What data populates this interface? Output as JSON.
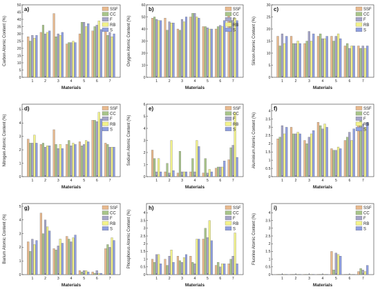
{
  "colors": {
    "SSF": "#e8b98e",
    "CC": "#a8c48a",
    "F": "#a5a5c8",
    "RB": "#f2f28a",
    "S": "#8f9fe0"
  },
  "chart_data": [
    {
      "type": "bar",
      "panel": "a)",
      "xlabel": "Materials",
      "ylabel": "Carbon Atomic Content (%)",
      "categories": [
        "1",
        "2",
        "3",
        "4",
        "5",
        "6",
        "7"
      ],
      "ylim": [
        0,
        50
      ],
      "yticks": [
        0,
        5,
        10,
        15,
        20,
        25,
        30,
        35,
        40,
        45,
        50
      ],
      "legend": [
        "SSF",
        "CC",
        "F",
        "RB",
        "S"
      ],
      "series": [
        {
          "name": "SSF",
          "values": [
            28,
            31,
            44,
            23,
            30,
            32,
            32
          ]
        },
        {
          "name": "CC",
          "values": [
            25,
            36,
            28,
            24,
            38,
            35,
            29
          ]
        },
        {
          "name": "F",
          "values": [
            29,
            30,
            30,
            24,
            38,
            36,
            31
          ]
        },
        {
          "name": "RB",
          "values": [
            27,
            31,
            29,
            25,
            35,
            39,
            28
          ]
        },
        {
          "name": "S",
          "values": [
            29,
            32,
            31,
            24,
            37,
            33,
            30
          ]
        }
      ]
    },
    {
      "type": "bar",
      "panel": "b)",
      "xlabel": "Materials",
      "ylabel": "Oxygen Atomic Content (%)",
      "categories": [
        "1",
        "2",
        "3",
        "4",
        "5",
        "6",
        "7"
      ],
      "ylim": [
        0,
        60
      ],
      "yticks": [
        0,
        10,
        20,
        30,
        40,
        50,
        60
      ],
      "legend": [
        "SSF",
        "CC",
        "F",
        "RB",
        "S"
      ],
      "series": [
        {
          "name": "SSF",
          "values": [
            49,
            49,
            40,
            50,
            42,
            40,
            51
          ]
        },
        {
          "name": "CC",
          "values": [
            50,
            39,
            39,
            53,
            42,
            42,
            47
          ]
        },
        {
          "name": "F",
          "values": [
            48,
            46,
            48,
            53,
            41,
            43,
            47
          ]
        },
        {
          "name": "RB",
          "values": [
            47,
            45,
            46,
            50,
            40,
            42,
            49
          ]
        },
        {
          "name": "S",
          "values": [
            47,
            45,
            50,
            49,
            40,
            47,
            47
          ]
        }
      ]
    },
    {
      "type": "bar",
      "panel": "c)",
      "xlabel": "Materials",
      "ylabel": "Silicon Atomic Content (%)",
      "categories": [
        "1",
        "2",
        "3",
        "4",
        "5",
        "6",
        "7"
      ],
      "ylim": [
        0,
        30
      ],
      "yticks": [
        0,
        5,
        10,
        15,
        20,
        25,
        30
      ],
      "legend": [
        "SSF",
        "CC",
        "F",
        "RB",
        "S"
      ],
      "series": [
        {
          "name": "SSF",
          "values": [
            17,
            17,
            14,
            17,
            17,
            13,
            13
          ]
        },
        {
          "name": "CC",
          "values": [
            13,
            14,
            15,
            18,
            15,
            14,
            12
          ]
        },
        {
          "name": "F",
          "values": [
            18,
            14,
            19,
            16,
            17,
            12,
            13
          ]
        },
        {
          "name": "RB",
          "values": [
            14,
            15,
            15,
            16,
            18,
            13,
            12
          ]
        },
        {
          "name": "S",
          "values": [
            17,
            14,
            18,
            17,
            16,
            13,
            13
          ]
        }
      ]
    },
    {
      "type": "bar",
      "panel": "d)",
      "xlabel": "Materials",
      "ylabel": "Nitrogen Atomic Content (%)",
      "categories": [
        "1",
        "2",
        "3",
        "4",
        "5",
        "6",
        "7"
      ],
      "ylim": [
        0,
        5.4
      ],
      "yticks": [
        0,
        1,
        2,
        3,
        4,
        5
      ],
      "legend": [
        "SSF",
        "CC",
        "F",
        "RB",
        "S"
      ],
      "series": [
        {
          "name": "SSF",
          "values": [
            2.8,
            2.4,
            3.5,
            2.4,
            2.6,
            4.2,
            2.5
          ]
        },
        {
          "name": "CC",
          "values": [
            2.5,
            2.5,
            2.4,
            2.7,
            2.3,
            4.2,
            2.4
          ]
        },
        {
          "name": "F",
          "values": [
            2.5,
            2.2,
            2.1,
            2.3,
            2.4,
            4.1,
            2.2
          ]
        },
        {
          "name": "RB",
          "values": [
            3.1,
            2.3,
            2.4,
            2.5,
            2.7,
            4.8,
            2.2
          ]
        },
        {
          "name": "S",
          "values": [
            2.5,
            2.3,
            2.1,
            2.4,
            2.6,
            4.3,
            2.2
          ]
        }
      ]
    },
    {
      "type": "bar",
      "panel": "e)",
      "xlabel": "Materials",
      "ylabel": "Sodium Atomic Content (%)",
      "categories": [
        "1",
        "2",
        "3",
        "4",
        "5",
        "6",
        "7"
      ],
      "ylim": [
        0,
        6
      ],
      "yticks": [
        0,
        1,
        2,
        3,
        4,
        5,
        6
      ],
      "legend": [
        "SSF",
        "CC",
        "F",
        "RB",
        "S"
      ],
      "series": [
        {
          "name": "SSF",
          "values": [
            2.2,
            0.4,
            0.3,
            0.4,
            0.3,
            0.7,
            1.4
          ]
        },
        {
          "name": "CC",
          "values": [
            1.5,
            1.1,
            2.1,
            1.5,
            1.5,
            0.8,
            2.4
          ]
        },
        {
          "name": "F",
          "values": [
            0.4,
            0.3,
            0.4,
            0.4,
            0.3,
            0.8,
            2.6
          ]
        },
        {
          "name": "RB",
          "values": [
            1.5,
            3.0,
            0.4,
            3.0,
            0.6,
            0.8,
            5.3
          ]
        },
        {
          "name": "S",
          "values": [
            0.4,
            0.5,
            0.4,
            2.5,
            0.4,
            1.3,
            1.6
          ]
        }
      ]
    },
    {
      "type": "bar",
      "panel": "f)",
      "xlabel": "Materials",
      "ylabel": "Aluminium Atomic Content (%)",
      "categories": [
        "1",
        "2",
        "3",
        "4",
        "5",
        "6",
        "7"
      ],
      "ylim": [
        0,
        4.4
      ],
      "yticks": [
        0,
        0.5,
        1.0,
        1.5,
        2.0,
        2.5,
        3.0,
        3.5,
        4.0
      ],
      "legend": [
        "SSF",
        "CC",
        "F",
        "RB",
        "S"
      ],
      "series": [
        {
          "name": "SSF",
          "values": [
            2.3,
            3.0,
            2.2,
            3.3,
            1.7,
            2.2,
            3.3
          ]
        },
        {
          "name": "CC",
          "values": [
            2.4,
            2.6,
            2.0,
            3.1,
            1.6,
            2.4,
            3.4
          ]
        },
        {
          "name": "F",
          "values": [
            3.1,
            2.6,
            2.4,
            2.9,
            1.6,
            2.7,
            3.2
          ]
        },
        {
          "name": "RB",
          "values": [
            2.6,
            2.7,
            2.6,
            3.2,
            1.8,
            2.2,
            3.0
          ]
        },
        {
          "name": "S",
          "values": [
            3.0,
            2.6,
            2.8,
            3.0,
            1.7,
            2.9,
            3.3
          ]
        }
      ]
    },
    {
      "type": "bar",
      "panel": "g)",
      "xlabel": "Materials",
      "ylabel": "Barium Atomic Content (%)",
      "categories": [
        "1",
        "2",
        "3",
        "4",
        "5",
        "6",
        "7"
      ],
      "ylim": [
        0,
        5.2
      ],
      "yticks": [
        0,
        1,
        2,
        3,
        4,
        5
      ],
      "legend": [
        "SSF",
        "CC",
        "F",
        "RB",
        "S"
      ],
      "series": [
        {
          "name": "SSF",
          "values": [
            2.4,
            4.5,
            1.9,
            2.8,
            0.3,
            0.2,
            1.9
          ]
        },
        {
          "name": "CC",
          "values": [
            1.7,
            3.0,
            1.8,
            2.6,
            0.2,
            0.1,
            2.2
          ]
        },
        {
          "name": "F",
          "values": [
            2.6,
            4.0,
            2.1,
            2.4,
            0.3,
            0.3,
            2.0
          ]
        },
        {
          "name": "RB",
          "values": [
            2.2,
            3.5,
            2.6,
            2.7,
            0.3,
            0.1,
            2.7
          ]
        },
        {
          "name": "S",
          "values": [
            2.5,
            3.2,
            2.3,
            2.9,
            0.2,
            0.1,
            2.5
          ]
        }
      ]
    },
    {
      "type": "bar",
      "panel": "h)",
      "xlabel": "Materials",
      "ylabel": "Phosphorus Atomic Content (%)",
      "categories": [
        "1",
        "2",
        "3",
        "4",
        "5",
        "6",
        "7"
      ],
      "ylim": [
        0,
        4.6
      ],
      "yticks": [
        0,
        0.5,
        1.0,
        1.5,
        2.0,
        2.5,
        3.0,
        3.5,
        4.0
      ],
      "legend": [
        "SSF",
        "CC",
        "F",
        "RB",
        "S"
      ],
      "series": [
        {
          "name": "SSF",
          "values": [
            1.0,
            1.0,
            1.2,
            1.2,
            2.3,
            0.6,
            0.7
          ]
        },
        {
          "name": "CC",
          "values": [
            0.8,
            0.6,
            0.9,
            0.8,
            3.0,
            0.8,
            1.0
          ]
        },
        {
          "name": "F",
          "values": [
            1.3,
            1.2,
            0.8,
            0.7,
            2.4,
            0.5,
            1.2
          ]
        },
        {
          "name": "RB",
          "values": [
            1.3,
            1.6,
            1.1,
            2.3,
            3.5,
            0.7,
            2.7
          ]
        },
        {
          "name": "S",
          "values": [
            0.7,
            0.8,
            1.3,
            2.3,
            2.2,
            0.7,
            0.7
          ]
        }
      ]
    },
    {
      "type": "bar",
      "panel": "i)",
      "xlabel": "Materials",
      "ylabel": "Fluorine Atomic Content (%)",
      "categories": [
        "1",
        "2",
        "3",
        "4",
        "5",
        "6",
        "7"
      ],
      "ylim": [
        0,
        4.6
      ],
      "yticks": [
        0,
        0.5,
        1.0,
        1.5,
        2.0,
        2.5,
        3.0,
        3.5,
        4.0
      ],
      "legend": [
        "SSF",
        "CC",
        "F",
        "RB",
        "S"
      ],
      "series": [
        {
          "name": "SSF",
          "values": [
            0.02,
            0.02,
            0.02,
            0.02,
            1.5,
            0.02,
            0.2
          ]
        },
        {
          "name": "CC",
          "values": [
            0.02,
            0.02,
            0.02,
            0.02,
            0.3,
            0.02,
            0.4
          ]
        },
        {
          "name": "F",
          "values": [
            0.02,
            0.02,
            0.02,
            0.02,
            1.4,
            0.02,
            0.3
          ]
        },
        {
          "name": "RB",
          "values": [
            0.02,
            0.02,
            0.02,
            0.02,
            1.3,
            0.02,
            0.2
          ]
        },
        {
          "name": "S",
          "values": [
            0.02,
            0.02,
            0.02,
            0.02,
            1.2,
            0.02,
            0.6
          ]
        }
      ]
    }
  ]
}
